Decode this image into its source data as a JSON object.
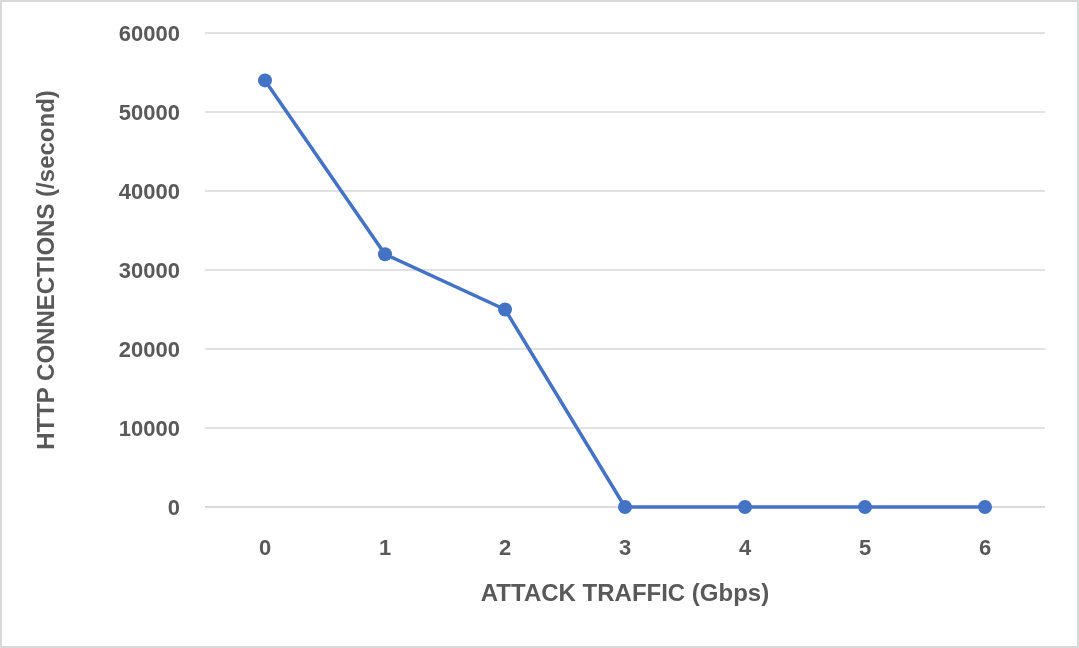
{
  "chart_data": {
    "type": "line",
    "xlabel": "ATTACK TRAFFIC (Gbps)",
    "ylabel": "HTTP CONNECTIONS (/second)",
    "categories": [
      "0",
      "1",
      "2",
      "3",
      "4",
      "5",
      "6"
    ],
    "series": [
      {
        "color": "#4472c4",
        "values": [
          54000,
          32000,
          25000,
          0,
          0,
          0,
          0
        ]
      }
    ],
    "ylim": [
      0,
      60000
    ],
    "yticks": [
      0,
      10000,
      20000,
      30000,
      40000,
      50000,
      60000
    ],
    "grid": "y",
    "marker": "circle",
    "line_style": "solid"
  }
}
